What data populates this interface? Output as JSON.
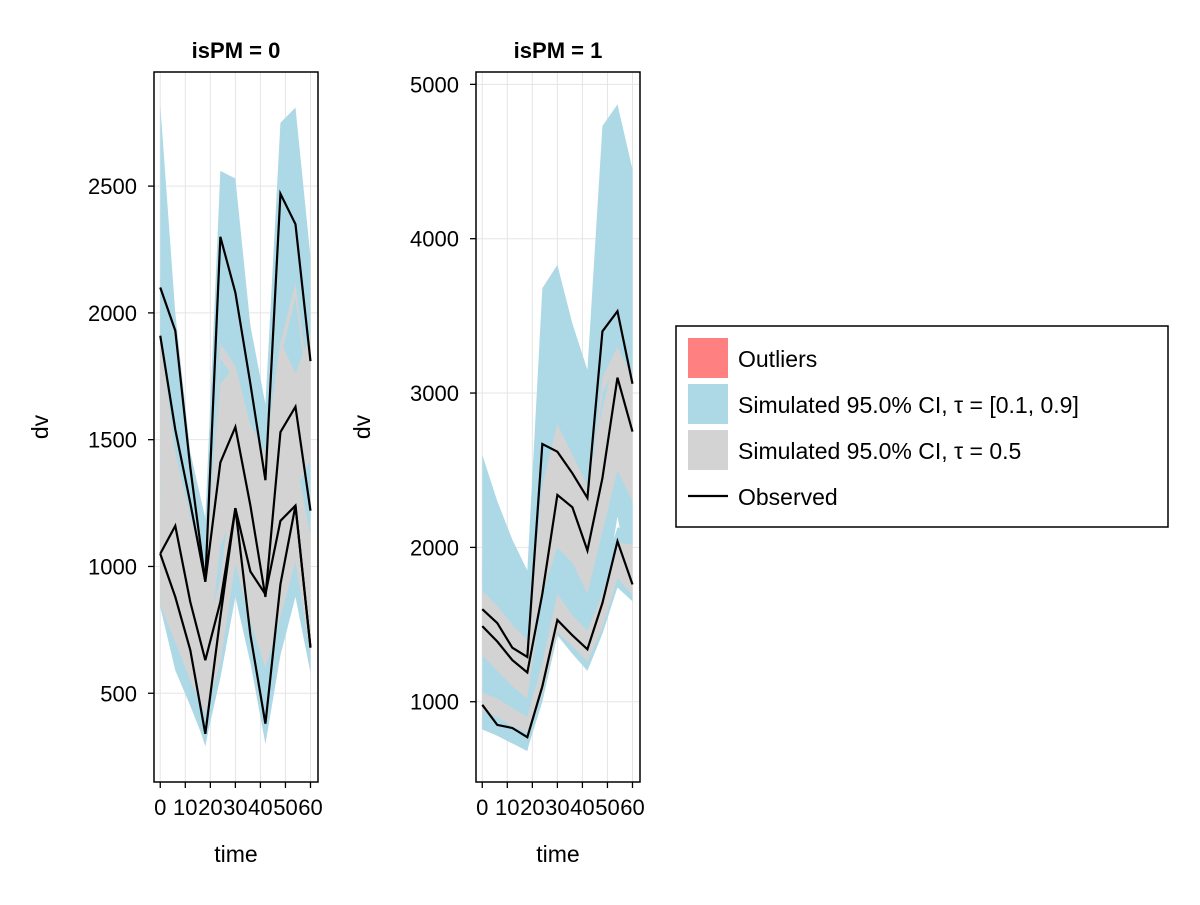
{
  "chart_data": [
    {
      "type": "line",
      "title": "isPM = 0",
      "xlabel": "time",
      "ylabel": "dv",
      "x": [
        0,
        6,
        12,
        18,
        24,
        30,
        36,
        42,
        48,
        54,
        60
      ],
      "xticks": [
        "0",
        "10",
        "20",
        "30",
        "40",
        "50",
        "60"
      ],
      "xtick_values": [
        0,
        10,
        20,
        30,
        40,
        50,
        60
      ],
      "xlim": [
        -2.5,
        63
      ],
      "yticks": [
        "500",
        "1000",
        "1500",
        "2000",
        "2500"
      ],
      "ytick_values": [
        500,
        1000,
        1500,
        2000,
        2500
      ],
      "ylim": [
        150,
        2950
      ],
      "grid": true,
      "outer_band": [
        {
          "lo": [
            840,
            660,
            480,
            290,
            600,
            900,
            690,
            330,
            720,
            920,
            600
          ],
          "hi": [
            2820,
            2000,
            1450,
            1190,
            2560,
            2530,
            1950,
            1640,
            2750,
            2810,
            2220
          ]
        },
        {
          "lo": [
            1080,
            1030,
            760,
            580,
            960,
            1280,
            1020,
            720,
            1250,
            1520,
            1320
          ],
          "hi": [
            2140,
            1550,
            1240,
            1010,
            1930,
            2060,
            1660,
            1410,
            2140,
            2230,
            1900
          ]
        },
        {
          "lo": [
            840,
            590,
            450,
            300,
            560,
            880,
            620,
            300,
            650,
            880,
            580
          ],
          "hi": [
            1350,
            1130,
            950,
            790,
            1100,
            1540,
            1180,
            920,
            1320,
            1620,
            1230
          ]
        }
      ],
      "median_band": [
        {
          "lo": [
            1700,
            1380,
            1130,
            830,
            1820,
            1730,
            1430,
            1150,
            1820,
            2060,
            1600
          ],
          "hi": [
            1800,
            1440,
            1180,
            880,
            1880,
            1790,
            1490,
            1200,
            1880,
            2120,
            1660
          ]
        },
        {
          "lo": [
            1060,
            900,
            740,
            560,
            1080,
            1230,
            1000,
            830,
            1140,
            1300,
            1420
          ],
          "hi": [
            1900,
            1450,
            1200,
            990,
            1720,
            1790,
            1560,
            1450,
            1890,
            1760,
            1920
          ]
        },
        {
          "lo": [
            850,
            700,
            550,
            420,
            620,
            1010,
            780,
            600,
            800,
            1020,
            650
          ],
          "hi": [
            1250,
            1000,
            850,
            720,
            950,
            1420,
            1100,
            900,
            1160,
            1430,
            1120
          ]
        }
      ],
      "observed": [
        [
          2100,
          1930,
          1390,
          940,
          2300,
          2080,
          1720,
          1340,
          2470,
          2350,
          1810
        ],
        [
          1910,
          1540,
          1250,
          940,
          1410,
          1550,
          1240,
          880,
          1530,
          1630,
          1220
        ],
        [
          1050,
          880,
          670,
          340,
          800,
          1230,
          730,
          380,
          930,
          1240,
          680
        ],
        [
          1050,
          1160,
          860,
          630,
          860,
          1230,
          980,
          890,
          1180,
          1240,
          680
        ]
      ]
    },
    {
      "type": "line",
      "title": "isPM = 1",
      "xlabel": "time",
      "ylabel": "dv",
      "x": [
        0,
        6,
        12,
        18,
        24,
        30,
        36,
        42,
        48,
        54,
        60
      ],
      "xticks": [
        "0",
        "10",
        "20",
        "30",
        "40",
        "50",
        "60"
      ],
      "xtick_values": [
        0,
        10,
        20,
        30,
        40,
        50,
        60
      ],
      "xlim": [
        -2.5,
        63
      ],
      "yticks": [
        "1000",
        "2000",
        "3000",
        "4000",
        "5000"
      ],
      "ytick_values": [
        1000,
        2000,
        3000,
        4000,
        5000
      ],
      "ylim": [
        480,
        5080
      ],
      "grid": true,
      "outer_band": [
        {
          "lo": [
            820,
            780,
            730,
            680,
            1100,
            1520,
            1400,
            1200,
            1600,
            2200,
            1700
          ],
          "hi": [
            2600,
            2300,
            2050,
            1850,
            3680,
            3830,
            3450,
            3150,
            4730,
            4870,
            4450
          ]
        },
        {
          "lo": [
            1390,
            1290,
            1190,
            1100,
            1500,
            2100,
            2000,
            1780,
            2300,
            2900,
            2500
          ],
          "hi": [
            1900,
            1780,
            1650,
            1500,
            2700,
            2950,
            2700,
            2500,
            3600,
            3800,
            3300
          ]
        },
        {
          "lo": [
            830,
            780,
            730,
            690,
            1000,
            1430,
            1310,
            1200,
            1440,
            1740,
            1650
          ],
          "hi": [
            1090,
            1040,
            990,
            920,
            1300,
            1770,
            1640,
            1520,
            1820,
            2130,
            2110
          ]
        }
      ],
      "median_band": [
        {
          "lo": [
            1540,
            1450,
            1320,
            1250,
            2290,
            2520,
            2380,
            2170,
            3000,
            3200,
            2900
          ],
          "hi": [
            1640,
            1550,
            1400,
            1330,
            2400,
            2600,
            2460,
            2260,
            3100,
            3300,
            3000
          ]
        },
        {
          "lo": [
            1300,
            1200,
            1100,
            1020,
            1700,
            2000,
            1900,
            1700,
            2100,
            2500,
            2300
          ],
          "hi": [
            1720,
            1620,
            1500,
            1400,
            2400,
            2800,
            2600,
            2400,
            2900,
            3300,
            3100
          ]
        },
        {
          "lo": [
            940,
            900,
            840,
            800,
            1050,
            1450,
            1360,
            1260,
            1480,
            1800,
            1690
          ],
          "hi": [
            1060,
            1020,
            960,
            900,
            1250,
            1700,
            1560,
            1460,
            1700,
            2030,
            2020
          ]
        }
      ],
      "observed": [
        [
          1600,
          1510,
          1350,
          1290,
          2670,
          2620,
          2480,
          2320,
          3400,
          3530,
          3060
        ],
        [
          1490,
          1390,
          1270,
          1190,
          1700,
          2340,
          2260,
          1980,
          2450,
          3100,
          2750
        ],
        [
          980,
          850,
          830,
          770,
          1100,
          1530,
          1430,
          1340,
          1640,
          2040,
          1760
        ]
      ]
    }
  ],
  "legend": {
    "placement": "right",
    "entries": [
      {
        "key": "outliers",
        "label": "Outliers",
        "color": "#ff8080",
        "kind": "patch"
      },
      {
        "key": "band",
        "label": "Simulated 95.0% CI, τ = [0.1, 0.9]",
        "color": "#add8e6",
        "kind": "patch"
      },
      {
        "key": "median",
        "label": "Simulated 95.0% CI, τ = 0.5",
        "color": "#d3d3d3",
        "kind": "patch"
      },
      {
        "key": "observed",
        "label": "Observed",
        "color": "#000000",
        "kind": "line"
      }
    ]
  }
}
